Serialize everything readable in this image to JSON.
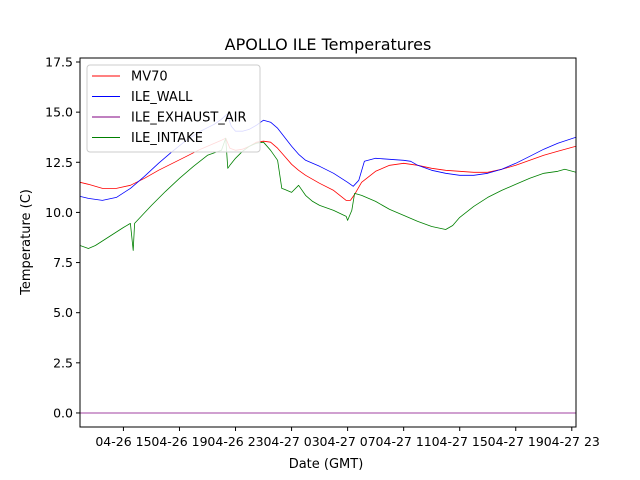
{
  "chart_data": {
    "type": "line",
    "title": "APOLLO ILE Temperatures",
    "xlabel": "Date (GMT)",
    "ylabel": "Temperature (C)",
    "xlim": [
      11.9,
      47.3
    ],
    "ylim": [
      -0.7,
      17.7
    ],
    "x_unit": "hours since 04-26 00:00 GMT",
    "xticks": [
      {
        "value": 15,
        "label": "04-26 15"
      },
      {
        "value": 19,
        "label": "04-26 19"
      },
      {
        "value": 23,
        "label": "04-26 23"
      },
      {
        "value": 27,
        "label": "04-27 03"
      },
      {
        "value": 31,
        "label": "04-27 07"
      },
      {
        "value": 35,
        "label": "04-27 11"
      },
      {
        "value": 39,
        "label": "04-27 15"
      },
      {
        "value": 43,
        "label": "04-27 19"
      },
      {
        "value": 47,
        "label": "04-27 23"
      }
    ],
    "yticks": [
      {
        "value": 0.0,
        "label": "0.0"
      },
      {
        "value": 2.5,
        "label": "2.5"
      },
      {
        "value": 5.0,
        "label": "5.0"
      },
      {
        "value": 7.5,
        "label": "7.5"
      },
      {
        "value": 10.0,
        "label": "10.0"
      },
      {
        "value": 12.5,
        "label": "12.5"
      },
      {
        "value": 15.0,
        "label": "15.0"
      },
      {
        "value": 17.5,
        "label": "17.5"
      }
    ],
    "legend_position": "top-left",
    "series": [
      {
        "name": "MV70",
        "color": "#ff0000",
        "x": [
          11.9,
          12.5,
          13.5,
          14.5,
          15.5,
          16.5,
          17.5,
          18.5,
          19.5,
          20.5,
          21.5,
          22.0,
          22.3,
          22.6,
          23.0,
          23.5,
          24.0,
          24.5,
          25.0,
          25.5,
          26.0,
          26.5,
          27.0,
          27.5,
          28.0,
          29.0,
          30.0,
          30.9,
          31.2,
          31.5,
          32.0,
          33.0,
          34.0,
          35.0,
          36.0,
          37.0,
          38.0,
          39.0,
          40.0,
          41.0,
          42.0,
          43.0,
          44.0,
          45.0,
          46.0,
          47.3
        ],
        "y": [
          11.5,
          11.4,
          11.2,
          11.2,
          11.35,
          11.7,
          12.1,
          12.45,
          12.8,
          13.15,
          13.45,
          13.6,
          13.7,
          13.2,
          13.1,
          13.15,
          13.3,
          13.5,
          13.55,
          13.5,
          13.2,
          12.8,
          12.4,
          12.1,
          11.85,
          11.45,
          11.1,
          10.6,
          10.6,
          10.9,
          11.5,
          12.05,
          12.35,
          12.45,
          12.35,
          12.2,
          12.1,
          12.05,
          12.0,
          12.0,
          12.15,
          12.35,
          12.6,
          12.85,
          13.05,
          13.3
        ]
      },
      {
        "name": "ILE_WALL",
        "color": "#0000ff",
        "x": [
          11.9,
          12.5,
          13.5,
          14.5,
          15.5,
          16.5,
          17.5,
          18.5,
          19.5,
          20.5,
          21.5,
          22.0,
          22.4,
          22.7,
          23.0,
          23.5,
          24.0,
          24.5,
          25.0,
          25.5,
          26.0,
          26.5,
          27.0,
          27.5,
          28.0,
          29.0,
          30.0,
          31.0,
          31.4,
          31.8,
          32.2,
          33.0,
          34.0,
          35.0,
          35.5,
          36.0,
          37.0,
          38.0,
          39.0,
          40.0,
          41.0,
          42.0,
          43.0,
          44.0,
          45.0,
          46.0,
          47.3
        ],
        "y": [
          10.8,
          10.7,
          10.6,
          10.75,
          11.2,
          11.8,
          12.45,
          13.05,
          13.6,
          14.05,
          14.4,
          14.65,
          14.9,
          14.3,
          14.05,
          14.05,
          14.15,
          14.35,
          14.6,
          14.5,
          14.2,
          13.75,
          13.3,
          12.9,
          12.6,
          12.3,
          11.95,
          11.5,
          11.3,
          11.6,
          12.55,
          12.7,
          12.65,
          12.6,
          12.55,
          12.35,
          12.1,
          11.95,
          11.85,
          11.85,
          11.95,
          12.15,
          12.45,
          12.8,
          13.15,
          13.45,
          13.75
        ]
      },
      {
        "name": "ILE_EXHAUST_AIR",
        "color": "#800080",
        "x": [
          11.9,
          47.3
        ],
        "y": [
          0.0,
          0.0
        ]
      },
      {
        "name": "ILE_INTAKE",
        "color": "#008000",
        "x": [
          11.9,
          12.5,
          13.0,
          14.0,
          15.0,
          15.5,
          15.7,
          15.8,
          16.0,
          17.0,
          18.0,
          19.0,
          20.0,
          21.0,
          22.0,
          22.3,
          22.45,
          22.6,
          23.0,
          23.5,
          24.0,
          24.5,
          25.0,
          25.5,
          26.0,
          26.3,
          26.5,
          27.0,
          27.5,
          28.0,
          28.5,
          29.0,
          30.0,
          30.9,
          31.0,
          31.3,
          31.5,
          32.0,
          33.0,
          34.0,
          35.0,
          36.0,
          37.0,
          38.0,
          38.5,
          39.0,
          40.0,
          41.0,
          42.0,
          43.0,
          44.0,
          45.0,
          46.0,
          46.5,
          47.3
        ],
        "y": [
          8.35,
          8.2,
          8.35,
          8.8,
          9.25,
          9.45,
          8.1,
          9.45,
          9.6,
          10.35,
          11.05,
          11.7,
          12.3,
          12.85,
          13.1,
          13.7,
          12.2,
          12.35,
          12.7,
          13.05,
          13.3,
          13.45,
          13.5,
          13.1,
          12.6,
          11.2,
          11.15,
          11.0,
          11.35,
          10.85,
          10.55,
          10.35,
          10.1,
          9.8,
          9.6,
          10.1,
          10.95,
          10.85,
          10.55,
          10.15,
          9.85,
          9.55,
          9.3,
          9.15,
          9.35,
          9.75,
          10.3,
          10.75,
          11.1,
          11.4,
          11.7,
          11.95,
          12.05,
          12.15,
          12.0
        ]
      }
    ]
  }
}
